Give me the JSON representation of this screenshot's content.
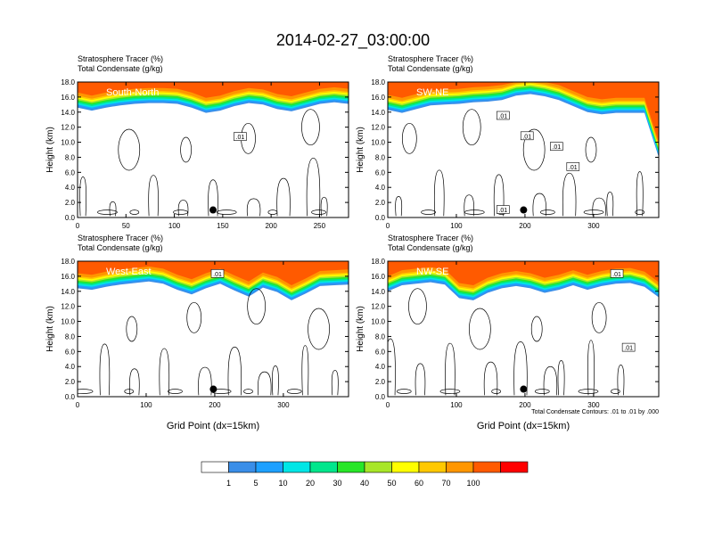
{
  "title": "2014-02-27_03:00:00",
  "colors": {
    "bg": "#ffffff",
    "axis": "#000000",
    "contour": "#000000",
    "section_label": "#ffffff"
  },
  "colorbar": {
    "labels": [
      "1",
      "5",
      "10",
      "20",
      "30",
      "40",
      "50",
      "60",
      "70",
      "100"
    ],
    "colors": [
      "#ffffff",
      "#3a8ee8",
      "#1ea0ff",
      "#00e6e6",
      "#00e68c",
      "#28e628",
      "#a8e628",
      "#ffff00",
      "#ffc800",
      "#ff9600",
      "#ff5a00",
      "#ff0000"
    ]
  },
  "panel_text": {
    "line1": "Stratosphere Tracer   (%)",
    "line2": "Total Condensate   (g/kg)",
    "ylabel": "Height (km)",
    "xlabel": "Grid Point (dx=15km)",
    "contour_note": "Total Condensate Contours: .01 to .01 by .000",
    "contour_label": ".01"
  },
  "chart_data": [
    {
      "type": "contour",
      "section": "South-North",
      "title": "Stratosphere Tracer (%) / Total Condensate (g/kg)",
      "xlabel": "",
      "ylabel": "Height (km)",
      "xlim": [
        0,
        280
      ],
      "ylim": [
        0,
        18
      ],
      "xticks": [
        "0",
        "50",
        "100",
        "150",
        "200",
        "250"
      ],
      "yticks": [
        "0.0",
        "2.0",
        "4.0",
        "6.0",
        "8.0",
        "10.0",
        "12.0",
        "14.0",
        "16.0",
        "18.0"
      ],
      "marker": {
        "x": 140,
        "y": 1.0
      },
      "contour_labels": [
        {
          "x": 168,
          "y": 10.7,
          "text": ".01"
        }
      ],
      "tracer_base_km": [
        14.6,
        14.2,
        14.6,
        14.9,
        15.1,
        15.2,
        15.2,
        15.1,
        14.6,
        13.9,
        14.2,
        14.8,
        15.2,
        15.0,
        14.4,
        14.1,
        14.6,
        15.1,
        15.3,
        15.1
      ]
    },
    {
      "type": "contour",
      "section": "SW-NE",
      "title": "Stratosphere Tracer (%) / Total Condensate (g/kg)",
      "xlabel": "",
      "ylabel": "Height (km)",
      "xlim": [
        0,
        395
      ],
      "ylim": [
        0,
        18
      ],
      "xticks": [
        "0",
        "100",
        "200",
        "300"
      ],
      "yticks": [
        "0.0",
        "2.0",
        "4.0",
        "6.0",
        "8.0",
        "10.0",
        "12.0",
        "14.0",
        "16.0",
        "18.0"
      ],
      "marker": {
        "x": 198,
        "y": 1.0
      },
      "contour_labels": [
        {
          "x": 168,
          "y": 13.5,
          "text": ".01"
        },
        {
          "x": 203,
          "y": 10.8,
          "text": ".01"
        },
        {
          "x": 246,
          "y": 9.4,
          "text": ".01"
        },
        {
          "x": 270,
          "y": 6.7,
          "text": ".01"
        },
        {
          "x": 168,
          "y": 1.0,
          "text": ".01"
        }
      ],
      "tracer_base_km": [
        14.3,
        13.9,
        14.4,
        14.9,
        15.0,
        15.1,
        15.3,
        15.4,
        15.6,
        16.2,
        16.4,
        16.1,
        15.6,
        14.8,
        14.0,
        13.7,
        13.9,
        13.9,
        13.9,
        8.0
      ]
    },
    {
      "type": "contour",
      "section": "West-East",
      "title": "Stratosphere Tracer (%) / Total Condensate (g/kg)",
      "xlabel": "Grid Point (dx=15km)",
      "ylabel": "Height (km)",
      "xlim": [
        0,
        395
      ],
      "ylim": [
        0,
        18
      ],
      "xticks": [
        "0",
        "100",
        "200",
        "300"
      ],
      "yticks": [
        "0.0",
        "2.0",
        "4.0",
        "6.0",
        "8.0",
        "10.0",
        "12.0",
        "14.0",
        "16.0",
        "18.0"
      ],
      "marker": {
        "x": 198,
        "y": 1.0
      },
      "contour_labels": [
        {
          "x": 204,
          "y": 16.3,
          "text": ".01"
        }
      ],
      "tracer_base_km": [
        14.4,
        14.2,
        14.6,
        14.9,
        15.1,
        15.3,
        15.0,
        14.2,
        13.6,
        14.4,
        15.0,
        14.1,
        13.3,
        14.5,
        13.9,
        12.8,
        13.7,
        14.7,
        14.8,
        14.9
      ]
    },
    {
      "type": "contour",
      "section": "NW-SE",
      "title": "Stratosphere Tracer (%) / Total Condensate (g/kg)",
      "xlabel": "Grid Point (dx=15km)",
      "ylabel": "Height (km)",
      "xlim": [
        0,
        395
      ],
      "ylim": [
        0,
        18
      ],
      "xticks": [
        "0",
        "100",
        "200",
        "300"
      ],
      "yticks": [
        "0.0",
        "2.0",
        "4.0",
        "6.0",
        "8.0",
        "10.0",
        "12.0",
        "14.0",
        "16.0",
        "18.0"
      ],
      "marker": {
        "x": 198,
        "y": 1.0
      },
      "contour_labels": [
        {
          "x": 334,
          "y": 16.3,
          "text": ".01"
        },
        {
          "x": 351,
          "y": 6.5,
          "text": ".01"
        }
      ],
      "tracer_base_km": [
        14.0,
        14.8,
        15.0,
        15.2,
        14.9,
        13.1,
        12.8,
        13.8,
        14.4,
        14.7,
        14.4,
        13.8,
        14.2,
        14.8,
        14.2,
        14.7,
        15.0,
        15.1,
        14.6,
        13.2
      ]
    }
  ]
}
